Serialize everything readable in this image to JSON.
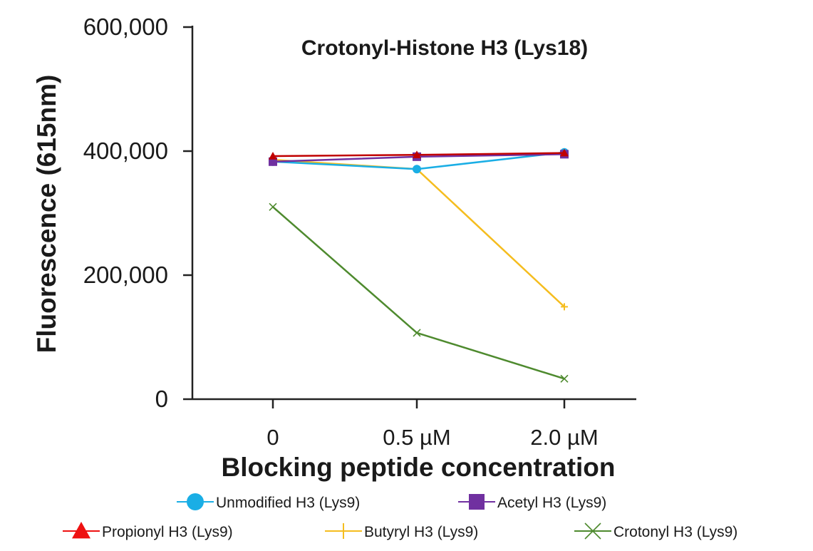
{
  "chart_data": {
    "type": "line",
    "title": "Crotonyl-Histone H3 (Lys18)",
    "xlabel": "Blocking peptide concentration",
    "ylabel": "Fluorescence (615nm)",
    "categories": [
      "0",
      "0.5 µM",
      "2.0 µM"
    ],
    "ylim": [
      0,
      600000
    ],
    "yticks": [
      0,
      200000,
      400000,
      600000
    ],
    "ytick_labels": [
      "0",
      "200,000",
      "400,000",
      "600,000"
    ],
    "grid": false,
    "legend_position": "bottom",
    "series": [
      {
        "name": "Unmodified H3 (Lys9)",
        "color": "#1aaee5",
        "marker": "circle",
        "values": [
          383000,
          371000,
          398000
        ]
      },
      {
        "name": "Acetyl H3 (Lys9)",
        "color": "#7030a0",
        "marker": "square",
        "values": [
          383000,
          391000,
          395000
        ]
      },
      {
        "name": "Propionyl H3 (Lys9)",
        "color": "#c00000",
        "legend_color": "#ee1111",
        "marker": "triangle",
        "values": [
          392000,
          394000,
          397000
        ]
      },
      {
        "name": "Butyryl H3 (Lys9)",
        "color": "#f5bd1f",
        "marker": "plus",
        "values": [
          386000,
          371000,
          149000
        ]
      },
      {
        "name": "Crotonyl H3 (Lys9)",
        "color": "#4e8a2e",
        "marker": "x",
        "values": [
          310000,
          107000,
          33000
        ]
      }
    ]
  }
}
